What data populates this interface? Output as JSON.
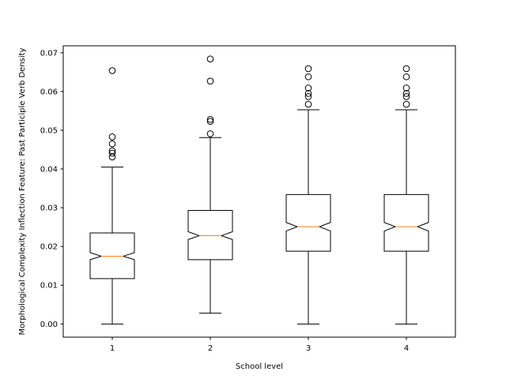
{
  "chart_data": {
    "type": "boxplot",
    "notched": true,
    "xlabel": "School level",
    "ylabel": "Morphological Complexity Inflection Feature: Past Participle Verb Density",
    "ylim": [
      -0.0034,
      0.0718
    ],
    "yticks": [
      0.0,
      0.01,
      0.02,
      0.03,
      0.04,
      0.05,
      0.06,
      0.07
    ],
    "ytick_labels": [
      "0.00",
      "0.01",
      "0.02",
      "0.03",
      "0.04",
      "0.05",
      "0.06",
      "0.07"
    ],
    "categories": [
      "1",
      "2",
      "3",
      "4"
    ],
    "boxes": [
      {
        "label": "1",
        "whisker_low": 0.0,
        "q1": 0.0117,
        "median": 0.0175,
        "q3": 0.0235,
        "whisker_high": 0.0405,
        "notch_low": 0.0166,
        "notch_high": 0.0184,
        "outliers": [
          0.0431,
          0.0441,
          0.0447,
          0.0465,
          0.0483,
          0.0654
        ]
      },
      {
        "label": "2",
        "whisker_low": 0.0028,
        "q1": 0.0166,
        "median": 0.0228,
        "q3": 0.0293,
        "whisker_high": 0.0481,
        "notch_low": 0.0218,
        "notch_high": 0.0238,
        "outliers": [
          0.0491,
          0.0523,
          0.0528,
          0.0627,
          0.0684
        ]
      },
      {
        "label": "3",
        "whisker_low": 0.0,
        "q1": 0.0188,
        "median": 0.0251,
        "q3": 0.0334,
        "whisker_high": 0.0553,
        "notch_low": 0.024,
        "notch_high": 0.0262,
        "outliers": [
          0.0567,
          0.0587,
          0.0595,
          0.0609,
          0.0638,
          0.0659
        ]
      },
      {
        "label": "4",
        "whisker_low": 0.0,
        "q1": 0.0188,
        "median": 0.0251,
        "q3": 0.0334,
        "whisker_high": 0.0553,
        "notch_low": 0.024,
        "notch_high": 0.0262,
        "outliers": [
          0.0567,
          0.0587,
          0.0595,
          0.0609,
          0.0638,
          0.0659
        ]
      }
    ],
    "colors": {
      "box": "#000000",
      "median": "#ff7f0e",
      "outlier_edge": "#000000"
    },
    "grid": false,
    "legend": "none"
  }
}
